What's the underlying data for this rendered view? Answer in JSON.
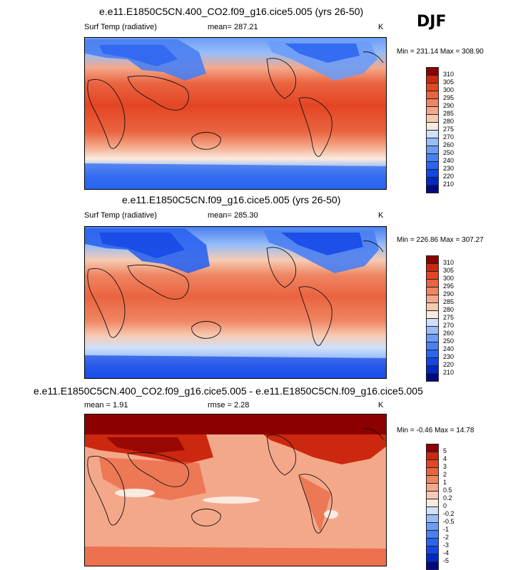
{
  "season": "DJF",
  "panels": [
    {
      "title": "e.e11.E1850C5CN.400_CO2.f09_g16.cice5.005 (yrs 26-50)",
      "left_label": "Surf Temp (radiative)",
      "mid_label": "mean= 287.21",
      "unit": "K",
      "minmax": "Min = 231.14 Max = 308.90"
    },
    {
      "title": "e.e11.E1850C5CN.f09_g16.cice5.005 (yrs 26-50)",
      "left_label": "Surf Temp (radiative)",
      "mid_label": "mean= 285.30",
      "unit": "K",
      "minmax": "Min = 226.86 Max = 307.27"
    },
    {
      "title": "e.e11.E1850C5CN.400_CO2.f09_g16.cice5.005 - e.e11.E1850C5CN.f09_g16.cice5.005",
      "left_label": "mean =   1.91",
      "mid_label": "rmse =   2.28",
      "unit": "K",
      "minmax": "Min = -0.46 Max = 14.78"
    }
  ],
  "chart_data": [
    {
      "type": "heatmap",
      "title": "e.e11.E1850C5CN.400_CO2.f09_g16.cice5.005 (yrs 26-50)",
      "variable": "Surf Temp (radiative)",
      "unit": "K",
      "mean": 287.21,
      "min": 231.14,
      "max": 308.9,
      "levels": [
        210,
        220,
        230,
        240,
        250,
        260,
        270,
        275,
        280,
        285,
        290,
        295,
        300,
        305,
        310
      ],
      "colors": [
        "#000a80",
        "#0028c8",
        "#1446e6",
        "#2a64f0",
        "#4a80f2",
        "#6c9cf6",
        "#98bdf8",
        "#cfe0fb",
        "#faeadf",
        "#f7cbb2",
        "#f4a88a",
        "#ef8562",
        "#ea6440",
        "#e44524",
        "#cc2810",
        "#8c0000"
      ]
    },
    {
      "type": "heatmap",
      "title": "e.e11.E1850C5CN.f09_g16.cice5.005 (yrs 26-50)",
      "variable": "Surf Temp (radiative)",
      "unit": "K",
      "mean": 285.3,
      "min": 226.86,
      "max": 307.27,
      "levels": [
        210,
        220,
        230,
        240,
        250,
        260,
        270,
        275,
        280,
        285,
        290,
        295,
        300,
        305,
        310
      ],
      "colors": [
        "#000a80",
        "#0028c8",
        "#1446e6",
        "#2a64f0",
        "#4a80f2",
        "#6c9cf6",
        "#98bdf8",
        "#cfe0fb",
        "#faeadf",
        "#f7cbb2",
        "#f4a88a",
        "#ef8562",
        "#ea6440",
        "#e44524",
        "#cc2810",
        "#8c0000"
      ]
    },
    {
      "type": "heatmap",
      "title": "e.e11.E1850C5CN.400_CO2.f09_g16.cice5.005 - e.e11.E1850C5CN.f09_g16.cice5.005",
      "variable": "difference",
      "unit": "K",
      "mean": 1.91,
      "rmse": 2.28,
      "min": -0.46,
      "max": 14.78,
      "levels": [
        -5,
        -4,
        -3,
        -2,
        -1,
        -0.5,
        -0.2,
        0,
        0.2,
        0.5,
        1,
        2,
        3,
        4,
        5
      ],
      "colors": [
        "#000a80",
        "#0028c8",
        "#1446e6",
        "#2a64f0",
        "#4a80f2",
        "#6c9cf6",
        "#98bdf8",
        "#cfe0fb",
        "#faeadf",
        "#f7cbb2",
        "#f4a88a",
        "#ef8562",
        "#ea6440",
        "#e44524",
        "#cc2810",
        "#8c0000"
      ]
    }
  ]
}
